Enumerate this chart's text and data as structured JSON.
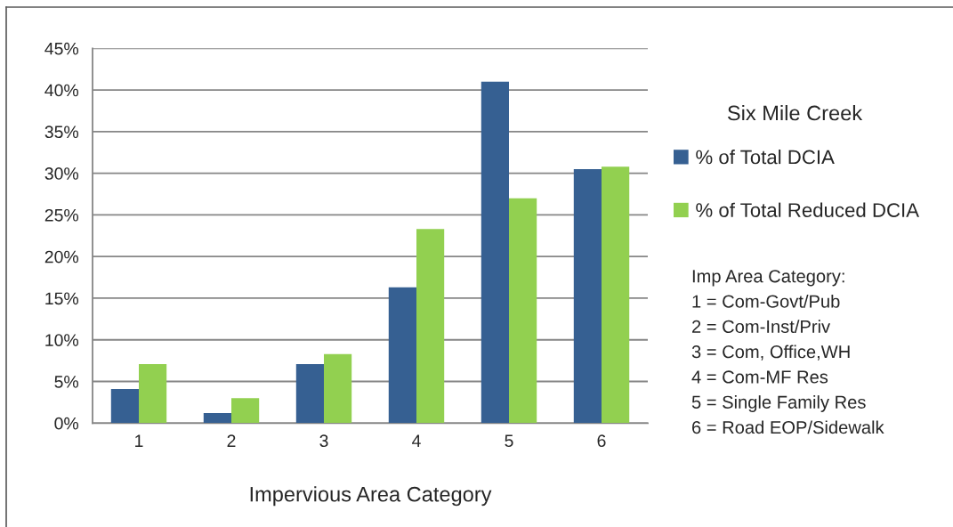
{
  "chart_data": {
    "type": "bar",
    "title": "Six Mile Creek",
    "xlabel": "Impervious Area Category",
    "categories": [
      "1",
      "2",
      "3",
      "4",
      "5",
      "6"
    ],
    "series": [
      {
        "name": "% of Total DCIA",
        "color": "#366092",
        "values": [
          4.1,
          1.2,
          7.1,
          16.3,
          41.0,
          30.5
        ]
      },
      {
        "name": "% of Total Reduced DCIA",
        "color": "#92d050",
        "values": [
          7.1,
          3.0,
          8.3,
          23.3,
          27.0,
          30.8
        ]
      }
    ],
    "ylim": [
      0,
      45
    ],
    "yticks": [
      {
        "value": 0,
        "label": "0%"
      },
      {
        "value": 5,
        "label": "5%"
      },
      {
        "value": 10,
        "label": "10%"
      },
      {
        "value": 15,
        "label": "15%"
      },
      {
        "value": 20,
        "label": "20%"
      },
      {
        "value": 25,
        "label": "25%"
      },
      {
        "value": 30,
        "label": "30%"
      },
      {
        "value": 35,
        "label": "35%"
      },
      {
        "value": 40,
        "label": "40%"
      },
      {
        "value": 45,
        "label": "45%"
      }
    ],
    "grid": "y",
    "legend": "right",
    "annotations": [
      "Imp Area Category:",
      "1 = Com-Govt/Pub",
      "2 = Com-Inst/Priv",
      "3 = Com, Office,WH",
      "4 = Com-MF Res",
      "5 = Single Family Res",
      "6 = Road EOP/Sidewalk"
    ]
  }
}
